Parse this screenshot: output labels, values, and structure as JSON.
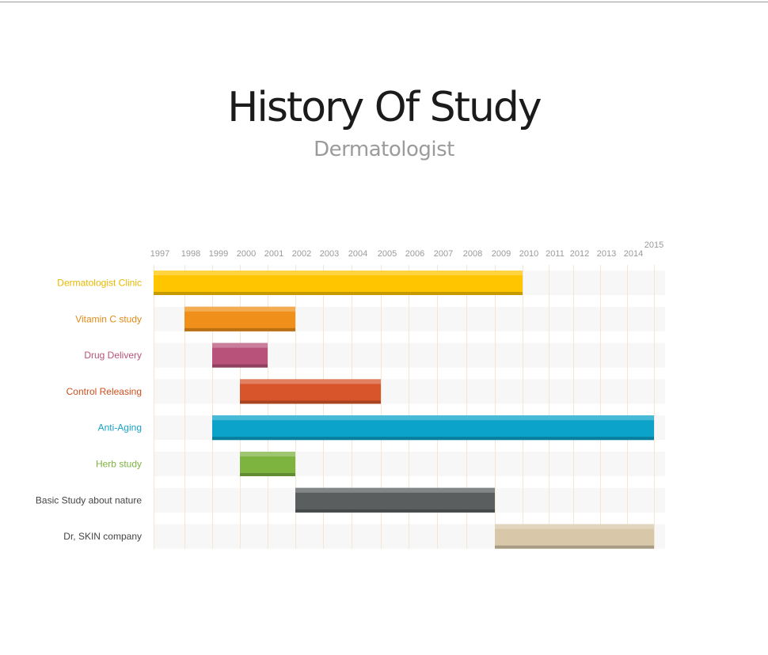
{
  "header": {
    "title": "History Of Study",
    "subtitle": "Dermatologist"
  },
  "chart_data": {
    "type": "bar",
    "orientation": "horizontal-range",
    "title": "History Of Study",
    "subtitle": "Dermatologist",
    "x_ticks": [
      "1997",
      "1998",
      "1999",
      "2000",
      "2001",
      "2002",
      "2003",
      "2004",
      "2005",
      "2006",
      "2007",
      "2008",
      "2009",
      "2010",
      "2011",
      "2012",
      "2013",
      "2014",
      "2015"
    ],
    "xlim": [
      1997,
      2015
    ],
    "grid": true,
    "categories": [
      "Dermatologist Clinic",
      "Vitamin C study",
      "Drug Delivery",
      "Control Releasing",
      "Anti-Aging",
      "Herb study",
      "Basic Study about nature",
      "Dr, SKIN company"
    ],
    "bars": [
      {
        "label": "Dermatologist Clinic",
        "start": 1997,
        "end": 2010,
        "color": "#FFC600",
        "label_color": "#E7B800"
      },
      {
        "label": "Vitamin C study",
        "start": 1998,
        "end": 2002,
        "color": "#F0901A",
        "label_color": "#E08A18"
      },
      {
        "label": "Drug Delivery",
        "start": 1999,
        "end": 2001,
        "color": "#B8527A",
        "label_color": "#B8527A"
      },
      {
        "label": "Control Releasing",
        "start": 2000,
        "end": 2005,
        "color": "#D8542A",
        "label_color": "#C9501E"
      },
      {
        "label": "Anti-Aging",
        "start": 1999,
        "end": 2015,
        "color": "#0BA3C9",
        "label_color": "#18A2C6"
      },
      {
        "label": "Herb study",
        "start": 2000,
        "end": 2002,
        "color": "#7DB33F",
        "label_color": "#7DB33F"
      },
      {
        "label": "Basic Study about nature",
        "start": 2002,
        "end": 2009,
        "color": "#5A5E5E",
        "label_color": "#444444"
      },
      {
        "label": "Dr, SKIN company",
        "start": 2009,
        "end": 2015,
        "color": "#D8C7A8",
        "label_color": "#444444"
      }
    ]
  }
}
